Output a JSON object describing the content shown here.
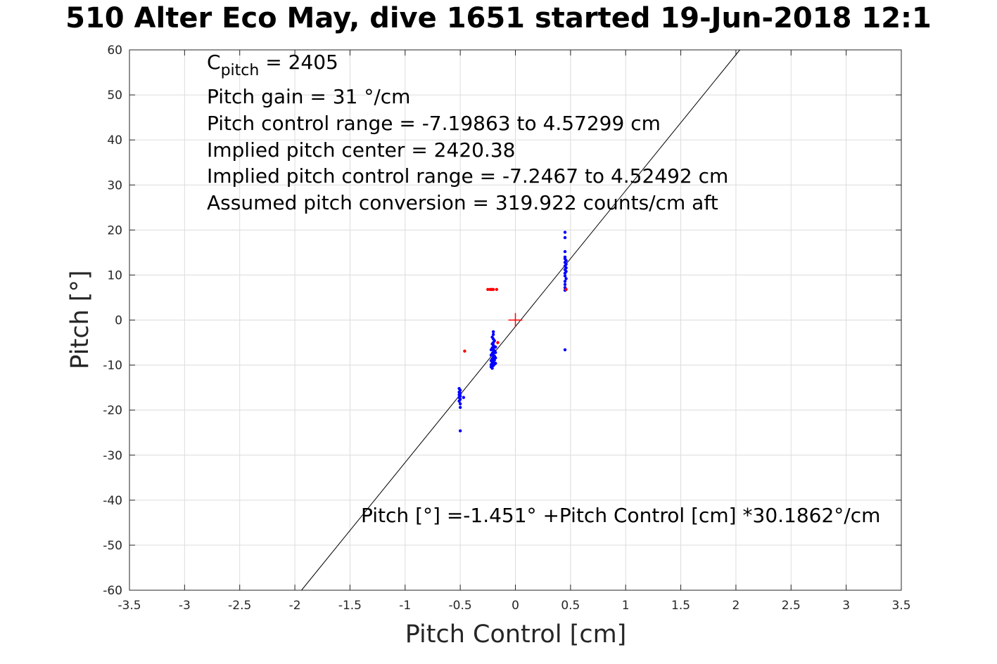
{
  "chart_data": {
    "type": "scatter",
    "title": "510 Alter Eco May, dive 1651 started 19-Jun-2018 12:1",
    "xlabel": "Pitch Control [cm]",
    "ylabel": "Pitch [°]",
    "xlim": [
      -3.5,
      3.5
    ],
    "ylim": [
      -60,
      60
    ],
    "x_ticks": [
      "-3.5",
      "-3",
      "-2.5",
      "-2",
      "-1.5",
      "-1",
      "-0.5",
      "0",
      "0.5",
      "1",
      "1.5",
      "2",
      "2.5",
      "3",
      "3.5"
    ],
    "y_ticks": [
      "60",
      "50",
      "40",
      "30",
      "20",
      "10",
      "0",
      "-10",
      "-20",
      "-30",
      "-40",
      "-50",
      "-60"
    ],
    "grid": true,
    "annotations": {
      "c_pitch_symbol": "C",
      "c_pitch_sub": "pitch",
      "c_pitch_value": " = 2405",
      "gain": "Pitch gain = 31 °/cm",
      "control_range": "Pitch control range = -7.19863 to 4.57299 cm",
      "implied_center": "Implied pitch center = 2420.38",
      "implied_range": "Implied pitch control range = -7.2467 to 4.52492 cm",
      "conversion": "Assumed pitch conversion = 319.922 counts/cm aft",
      "fit_equation": "Pitch [°] =-1.451°  +Pitch Control [cm] *30.1862°/cm"
    },
    "fit_line": {
      "intercept": -1.451,
      "slope": 30.1862,
      "color": "#000000"
    },
    "center_marker": {
      "x": 0,
      "y": 0,
      "color": "#ff0000"
    },
    "series": [
      {
        "color": "#0000ff",
        "points": [
          [
            0.45,
            19.5
          ],
          [
            0.45,
            18.3
          ],
          [
            0.45,
            15.2
          ],
          [
            0.45,
            14.0
          ],
          [
            0.45,
            13.6
          ],
          [
            0.46,
            13.2
          ],
          [
            0.45,
            12.8
          ],
          [
            0.46,
            12.4
          ],
          [
            0.45,
            12.0
          ],
          [
            0.46,
            11.6
          ],
          [
            0.45,
            11.2
          ],
          [
            0.46,
            10.8
          ],
          [
            0.45,
            10.4
          ],
          [
            0.45,
            9.8
          ],
          [
            0.46,
            9.2
          ],
          [
            0.45,
            8.6
          ],
          [
            0.45,
            7.9
          ],
          [
            0.45,
            7.2
          ],
          [
            0.45,
            6.6
          ],
          [
            0.45,
            -6.6
          ],
          [
            -0.2,
            -2.6
          ],
          [
            -0.2,
            -3.2
          ],
          [
            -0.21,
            -3.8
          ],
          [
            -0.2,
            -4.2
          ],
          [
            -0.19,
            -4.6
          ],
          [
            -0.2,
            -5.0
          ],
          [
            -0.21,
            -5.3
          ],
          [
            -0.2,
            -5.6
          ],
          [
            -0.19,
            -5.9
          ],
          [
            -0.21,
            -6.2
          ],
          [
            -0.2,
            -6.5
          ],
          [
            -0.19,
            -6.8
          ],
          [
            -0.2,
            -7.1
          ],
          [
            -0.21,
            -7.4
          ],
          [
            -0.2,
            -7.7
          ],
          [
            -0.19,
            -8.0
          ],
          [
            -0.2,
            -8.3
          ],
          [
            -0.21,
            -8.6
          ],
          [
            -0.19,
            -8.9
          ],
          [
            -0.2,
            -9.2
          ],
          [
            -0.21,
            -9.5
          ],
          [
            -0.19,
            -9.8
          ],
          [
            -0.2,
            -10.1
          ],
          [
            -0.22,
            -10.4
          ],
          [
            -0.21,
            -10.7
          ],
          [
            -0.22,
            -9.9
          ],
          [
            -0.18,
            -9.6
          ],
          [
            -0.18,
            -8.4
          ],
          [
            -0.18,
            -7.2
          ],
          [
            -0.18,
            -6.0
          ],
          [
            -0.22,
            -6.6
          ],
          [
            -0.22,
            -7.8
          ],
          [
            -0.22,
            -9.0
          ],
          [
            -0.51,
            -15.2
          ],
          [
            -0.5,
            -15.6
          ],
          [
            -0.51,
            -16.0
          ],
          [
            -0.5,
            -16.3
          ],
          [
            -0.51,
            -16.6
          ],
          [
            -0.5,
            -16.9
          ],
          [
            -0.51,
            -17.2
          ],
          [
            -0.5,
            -17.6
          ],
          [
            -0.51,
            -18.0
          ],
          [
            -0.5,
            -18.6
          ],
          [
            -0.5,
            -19.4
          ],
          [
            -0.47,
            -17.2
          ],
          [
            -0.5,
            -24.6
          ]
        ]
      },
      {
        "color": "#ff0000",
        "points": [
          [
            -0.25,
            6.8
          ],
          [
            -0.23,
            6.8
          ],
          [
            -0.22,
            6.8
          ],
          [
            -0.21,
            6.8
          ],
          [
            -0.2,
            6.8
          ],
          [
            -0.17,
            6.8
          ],
          [
            -0.46,
            -6.9
          ],
          [
            -0.16,
            -5.0
          ],
          [
            0.46,
            6.8
          ]
        ]
      }
    ]
  }
}
